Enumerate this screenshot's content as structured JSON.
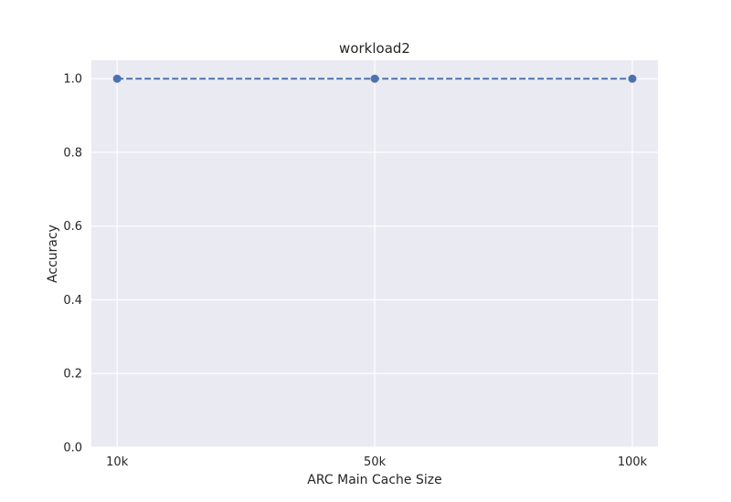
{
  "chart_data": {
    "type": "line",
    "title": "workload2",
    "xlabel": "ARC Main Cache Size",
    "ylabel": "Accuracy",
    "categories": [
      "10k",
      "50k",
      "100k"
    ],
    "series": [
      {
        "values": [
          1.0,
          1.0,
          1.0
        ]
      }
    ],
    "ylim": [
      0.0,
      1.05
    ],
    "yticks": [
      "0.0",
      "0.2",
      "0.4",
      "0.6",
      "0.8",
      "1.0"
    ],
    "grid": true,
    "line_style": "dashed",
    "marker": "circle",
    "colors": {
      "series": "#4c72b0",
      "plot_background": "#eaeaf2",
      "grid": "#ffffff"
    }
  }
}
